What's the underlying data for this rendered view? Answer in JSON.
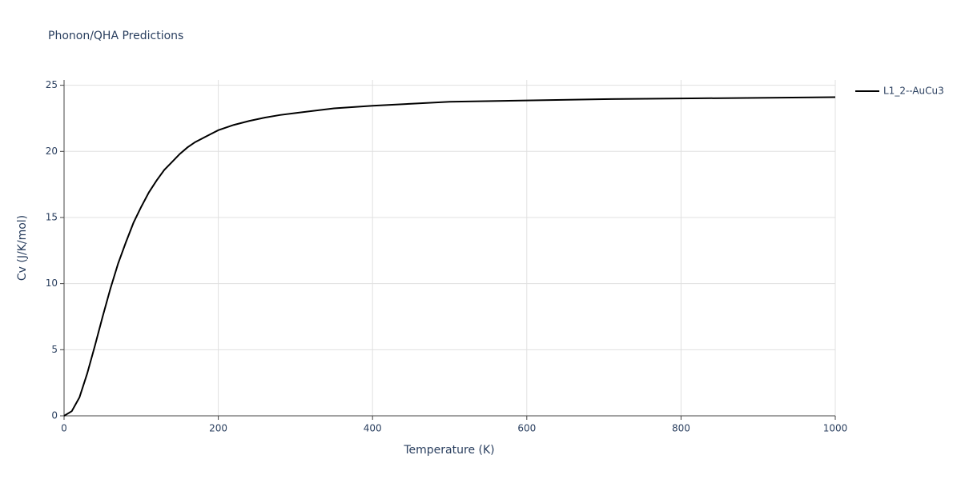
{
  "chart_data": {
    "type": "line",
    "title": "Phonon/QHA Predictions",
    "x_label": "Temperature (K)",
    "y_label": "Cv (J/K/mol)",
    "x": [
      0,
      10,
      20,
      30,
      40,
      50,
      60,
      70,
      80,
      90,
      100,
      110,
      120,
      130,
      140,
      150,
      160,
      170,
      180,
      190,
      200,
      220,
      240,
      260,
      280,
      300,
      350,
      400,
      450,
      500,
      600,
      700,
      800,
      900,
      1000
    ],
    "series": [
      {
        "name": "L1_2--AuCu3",
        "color": "#000000",
        "values": [
          0,
          0.35,
          1.4,
          3.2,
          5.3,
          7.5,
          9.6,
          11.5,
          13.1,
          14.6,
          15.8,
          16.9,
          17.8,
          18.6,
          19.2,
          19.8,
          20.3,
          20.7,
          21.0,
          21.3,
          21.6,
          22.0,
          22.3,
          22.55,
          22.75,
          22.9,
          23.25,
          23.45,
          23.6,
          23.75,
          23.85,
          23.95,
          24.0,
          24.05,
          24.1
        ]
      }
    ],
    "xlim": [
      0,
      1000
    ],
    "xticks": [
      0,
      200,
      400,
      600,
      800,
      1000
    ],
    "ylim": [
      0,
      25.4
    ],
    "yticks": [
      0,
      5,
      10,
      15,
      20,
      25
    ],
    "grid": true,
    "legend": "right"
  }
}
